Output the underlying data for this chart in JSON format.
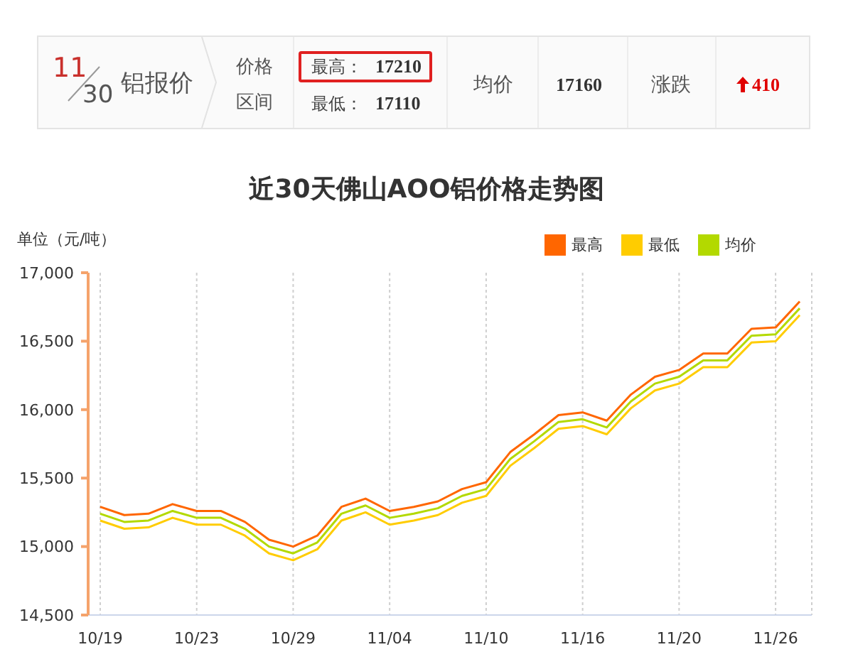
{
  "chart_data": {
    "type": "line",
    "title": "近30天佛山AOO铝价格走势图",
    "ylabel": "单位（元/吨）",
    "annotations": [
      "11",
      "30",
      "铝报价",
      "价格",
      "区间",
      "最高：",
      "17210",
      "最低：",
      "17110",
      "均价",
      "17160",
      "涨跌",
      "410"
    ],
    "categories": [
      "10/19",
      null,
      null,
      null,
      "10/23",
      null,
      null,
      null,
      "10/29",
      null,
      null,
      null,
      "11/04",
      null,
      null,
      null,
      "11/10",
      null,
      null,
      null,
      "11/16",
      null,
      null,
      null,
      "11/20",
      null,
      null,
      null,
      "11/26",
      null
    ],
    "series": [
      {
        "name": "最高",
        "color": "#ff6600",
        "values": [
          15290,
          15230,
          15240,
          15310,
          15260,
          15260,
          15180,
          15050,
          15000,
          15080,
          15290,
          15350,
          15260,
          15290,
          15330,
          15420,
          15470,
          15690,
          15820,
          15960,
          15980,
          15920,
          16110,
          16240,
          16290,
          16410,
          16410,
          16590,
          16600,
          16790
        ]
      },
      {
        "name": "最低",
        "color": "#ffcc00",
        "values": [
          15190,
          15130,
          15140,
          15210,
          15160,
          15160,
          15080,
          14950,
          14900,
          14980,
          15190,
          15250,
          15160,
          15190,
          15230,
          15320,
          15370,
          15590,
          15720,
          15860,
          15880,
          15820,
          16010,
          16140,
          16190,
          16310,
          16310,
          16490,
          16500,
          16690
        ]
      },
      {
        "name": "均价",
        "color": "#b3d900",
        "values": [
          15240,
          15180,
          15190,
          15260,
          15210,
          15210,
          15130,
          15000,
          14950,
          15030,
          15240,
          15300,
          15210,
          15240,
          15280,
          15370,
          15420,
          15640,
          15770,
          15910,
          15930,
          15870,
          16060,
          16190,
          16240,
          16360,
          16360,
          16540,
          16550,
          16740
        ]
      }
    ],
    "ylim": [
      14500,
      17000
    ],
    "yticks": [
      {
        "value": 14500,
        "label": "14,500"
      },
      {
        "value": 15000,
        "label": "15,000"
      },
      {
        "value": 15500,
        "label": "15,500"
      },
      {
        "value": 16000,
        "label": "16,000"
      },
      {
        "value": 16500,
        "label": "16,500"
      },
      {
        "value": 17000,
        "label": "17,000"
      }
    ],
    "grid": "x",
    "legend": "top right"
  }
}
